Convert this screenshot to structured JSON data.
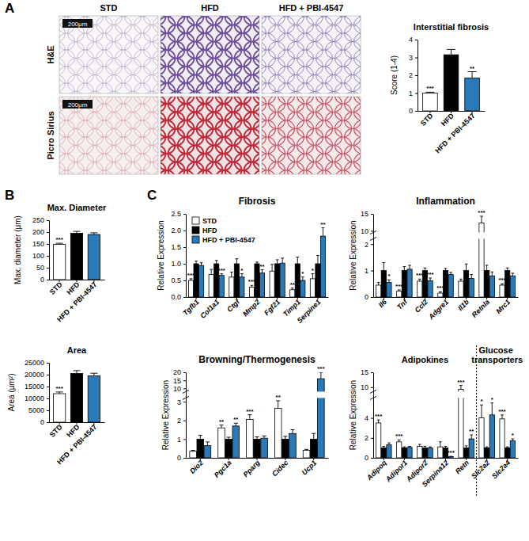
{
  "figure": {
    "panel_labels": [
      "A",
      "B",
      "C"
    ],
    "image_columns": [
      "STD",
      "HFD",
      "HFD + PBI-4547"
    ],
    "image_rows": [
      "H&E",
      "Picro Sirius"
    ],
    "scale_bar": "200μm"
  },
  "chart_data": [
    {
      "type": "bar",
      "title": "Interstitial fibrosis",
      "ylabel": "Score (1-4)",
      "categories": [
        "STD",
        "HFD",
        "HFD + PBI-4547"
      ],
      "values": [
        1.0,
        3.15,
        1.85
      ],
      "errors": [
        0.05,
        0.3,
        0.35
      ],
      "annotations": [
        "***",
        null,
        "**"
      ],
      "colors": [
        "#ffffff",
        "#000000",
        "#2a7ab9"
      ],
      "ylim": [
        0,
        4
      ],
      "yticks": [
        0,
        1,
        2,
        3,
        4
      ]
    },
    {
      "type": "bar",
      "title": "Max. Diameter",
      "ylabel": "Max. diameter (μm)",
      "categories": [
        "STD",
        "HFD",
        "HFD + PBI-4547"
      ],
      "values": [
        148,
        195,
        190
      ],
      "errors": [
        5,
        8,
        7
      ],
      "annotations": [
        "***",
        null,
        null
      ],
      "colors": [
        "#ffffff",
        "#000000",
        "#2a7ab9"
      ],
      "ylim": [
        0,
        250
      ],
      "yticks": [
        0,
        50,
        100,
        150,
        200,
        250
      ]
    },
    {
      "type": "bar",
      "title": "Area",
      "ylabel": "Area (μm²)",
      "categories": [
        "STD",
        "HFD",
        "HFD + PBI-4547"
      ],
      "values": [
        12000,
        20500,
        19500
      ],
      "errors": [
        700,
        1200,
        1100
      ],
      "annotations": [
        "***",
        null,
        null
      ],
      "colors": [
        "#ffffff",
        "#000000",
        "#2a7ab9"
      ],
      "ylim": [
        0,
        25000
      ],
      "yticks": [
        0,
        5000,
        10000,
        15000,
        20000,
        25000
      ]
    },
    {
      "type": "bar",
      "title": "Fibrosis",
      "ylabel": "Relative Expression",
      "categories": [
        "Tgfb1",
        "Col1a1",
        "Ctgf",
        "Mmp2",
        "Fgf21",
        "Timp1",
        "Serpine1"
      ],
      "series": [
        {
          "name": "STD",
          "color": "#ffffff",
          "values": [
            0.5,
            0.68,
            0.6,
            0.3,
            0.78,
            0.22,
            0.55
          ],
          "errors": [
            0.05,
            0.15,
            0.15,
            0.05,
            0.2,
            0.05,
            0.15
          ],
          "annotations": [
            "***",
            null,
            null,
            "***",
            null,
            "**",
            "*"
          ]
        },
        {
          "name": "HFD",
          "color": "#000000",
          "values": [
            1,
            1,
            1,
            1,
            1,
            1,
            1
          ],
          "errors": [
            0.08,
            0.1,
            0.15,
            0.05,
            0.12,
            0.2,
            0.25
          ],
          "annotations": [
            null,
            null,
            null,
            null,
            null,
            null,
            null
          ]
        },
        {
          "name": "HFD + PBI-4547",
          "color": "#2a7ab9",
          "values": [
            0.95,
            0.65,
            0.6,
            0.72,
            1.02,
            0.5,
            1.83
          ],
          "errors": [
            0.08,
            0.05,
            0.1,
            0.1,
            0.15,
            0.1,
            0.25
          ],
          "annotations": [
            null,
            "***",
            "*",
            "**",
            null,
            "*",
            "**"
          ]
        }
      ],
      "ylim": [
        0,
        2.5
      ],
      "yticks": [
        {
          "value": 0,
          "label": "0.0"
        },
        {
          "value": 0.5,
          "label": "0.5"
        },
        {
          "value": 1,
          "label": "1.0"
        },
        {
          "value": 1.5,
          "label": "1.5"
        },
        {
          "value": 2,
          "label": "2.0"
        },
        {
          "value": 2.5,
          "label": "2.5"
        }
      ],
      "legend": "top-left"
    },
    {
      "type": "bar",
      "title": "Inflammation",
      "ylabel": "Relative Expression",
      "categories": [
        "Il6",
        "Tnf",
        "Ccl2",
        "Adgre1",
        "Il1b",
        "Retnla",
        "Mrc1"
      ],
      "series": [
        {
          "name": "STD",
          "color": "#ffffff",
          "values": [
            0.45,
            0.22,
            0.6,
            0.15,
            0.6,
            12.3,
            0.45
          ],
          "errors": [
            0.1,
            0.05,
            0.08,
            0.05,
            0.08,
            2,
            0.05
          ],
          "annotations": [
            null,
            "***",
            "***",
            "***",
            null,
            "***",
            "***"
          ]
        },
        {
          "name": "HFD",
          "color": "#000000",
          "values": [
            1,
            1,
            1,
            1,
            1,
            1,
            1
          ],
          "errors": [
            0.3,
            0.15,
            0.1,
            0.08,
            0.25,
            0.2,
            0.1
          ],
          "annotations": [
            null,
            null,
            null,
            null,
            null,
            null,
            null
          ]
        },
        {
          "name": "HFD + PBI-4547",
          "color": "#2a7ab9",
          "values": [
            0.55,
            1.05,
            0.62,
            0.85,
            0.7,
            0.8,
            0.8
          ],
          "errors": [
            0.1,
            0.15,
            0.1,
            0.08,
            0.15,
            0.15,
            0.1
          ],
          "annotations": [
            "*",
            null,
            "***",
            null,
            null,
            null,
            null
          ]
        }
      ],
      "ylim": [
        0,
        15
      ],
      "yticks": [
        0,
        1,
        2,
        10,
        15
      ],
      "axis_break": [
        2.2,
        9.5
      ]
    },
    {
      "type": "bar",
      "title": "Browning/Thermogenesis",
      "ylabel": "Relative Expression",
      "categories": [
        "Dio2",
        "Pgc1a",
        "Pparg",
        "Cidec",
        "Ucp1"
      ],
      "series": [
        {
          "name": "STD",
          "color": "#ffffff",
          "values": [
            0.35,
            1.6,
            2.05,
            2.65,
            0.4
          ],
          "errors": [
            0.05,
            0.15,
            0.25,
            0.4,
            0.05
          ],
          "annotations": [
            null,
            "**",
            "***",
            "**",
            null
          ]
        },
        {
          "name": "HFD",
          "color": "#000000",
          "values": [
            1,
            1,
            1,
            1,
            1
          ],
          "errors": [
            0.2,
            0.1,
            0.12,
            0.15,
            0.3
          ],
          "annotations": [
            null,
            null,
            null,
            null,
            null
          ]
        },
        {
          "name": "HFD + PBI-4547",
          "color": "#2a7ab9",
          "values": [
            0.65,
            1.7,
            1.05,
            1.3,
            16
          ],
          "errors": [
            0.2,
            0.15,
            0.12,
            0.2,
            4
          ],
          "annotations": [
            null,
            "**",
            null,
            null,
            "***"
          ]
        }
      ],
      "ylim": [
        0,
        20
      ],
      "yticks": [
        0,
        1,
        2,
        3,
        10,
        15,
        20
      ],
      "axis_break": [
        3.2,
        8
      ]
    },
    {
      "type": "bar",
      "ylabel": "Relative Expression",
      "groups": [
        {
          "title": "Adipokines",
          "size": 5
        },
        {
          "title": "Glucose transporters",
          "size": 2
        }
      ],
      "categories": [
        "Adipoq",
        "Adipor1",
        "Adipor2",
        "Serpina12",
        "Retn",
        "Slc2a2",
        "Slc2a4"
      ],
      "series": [
        {
          "name": "STD",
          "color": "#ffffff",
          "values": [
            3.5,
            1.6,
            1.15,
            1.1,
            9.3,
            4.0,
            3.9
          ],
          "errors": [
            0.3,
            0.2,
            0.2,
            0.5,
            1.3,
            1.3,
            0.4
          ],
          "annotations": [
            "***",
            "***",
            null,
            null,
            "***",
            "*",
            "***"
          ]
        },
        {
          "name": "HFD",
          "color": "#000000",
          "values": [
            1,
            1,
            1,
            1,
            1,
            1,
            1
          ],
          "errors": [
            0.15,
            0.1,
            0.15,
            0.15,
            0.2,
            0.1,
            0.1
          ],
          "annotations": [
            null,
            null,
            null,
            null,
            null,
            null,
            null
          ]
        },
        {
          "name": "HFD + PBI-4547",
          "color": "#2a7ab9",
          "values": [
            1.3,
            1.05,
            1.0,
            0.12,
            1.9,
            4.3,
            1.7
          ],
          "errors": [
            0.2,
            0.1,
            0.1,
            0.03,
            0.4,
            1.2,
            0.2
          ],
          "annotations": [
            null,
            null,
            null,
            "***",
            "**",
            "*",
            "*"
          ]
        }
      ],
      "ylim": [
        0,
        15
      ],
      "yticks": [
        0,
        2,
        4,
        10,
        15
      ],
      "axis_break": [
        6,
        8.5
      ]
    }
  ]
}
